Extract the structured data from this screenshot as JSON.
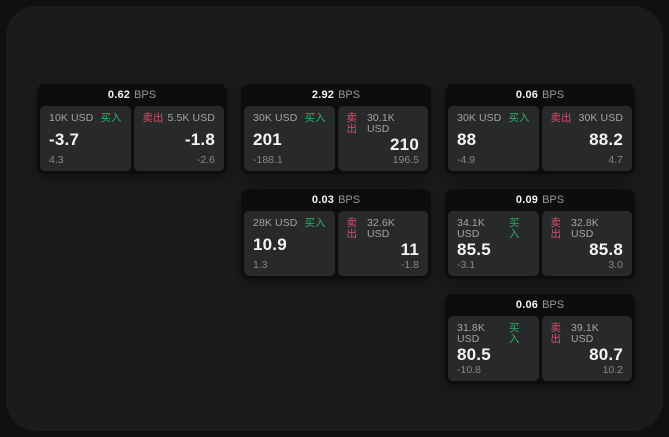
{
  "labels": {
    "bps": "BPS",
    "buy": "买入",
    "sell": "卖出"
  },
  "colors": {
    "buy_green": "#31b068",
    "sell_red": "#d7506a",
    "panel_bg": "#1a1b1d",
    "card_bg": "#0c0d0e",
    "cell_bg": "#28292b"
  },
  "cards": [
    {
      "bps": "0.62",
      "buy": {
        "amount": "10K USD",
        "price": "-3.7",
        "sub": "4.3"
      },
      "sell": {
        "amount": "5.5K USD",
        "price": "-1.8",
        "sub": "-2.6"
      }
    },
    {
      "bps": "2.92",
      "buy": {
        "amount": "30K USD",
        "price": "201",
        "sub": "-188.1"
      },
      "sell": {
        "amount": "30.1K USD",
        "price": "210",
        "sub": "196.5"
      }
    },
    {
      "bps": "0.06",
      "buy": {
        "amount": "30K USD",
        "price": "88",
        "sub": "-4.9"
      },
      "sell": {
        "amount": "30K USD",
        "price": "88.2",
        "sub": "4.7"
      }
    },
    {
      "bps": "0.03",
      "buy": {
        "amount": "28K USD",
        "price": "10.9",
        "sub": "1.3"
      },
      "sell": {
        "amount": "32.6K USD",
        "price": "11",
        "sub": "-1.8"
      }
    },
    {
      "bps": "0.09",
      "buy": {
        "amount": "34.1K USD",
        "price": "85.5",
        "sub": "-3.1"
      },
      "sell": {
        "amount": "32.8K USD",
        "price": "85.8",
        "sub": "3.0"
      }
    },
    {
      "bps": "0.06",
      "buy": {
        "amount": "31.8K USD",
        "price": "80.5",
        "sub": "-10.8"
      },
      "sell": {
        "amount": "39.1K USD",
        "price": "80.7",
        "sub": "10.2"
      }
    }
  ]
}
